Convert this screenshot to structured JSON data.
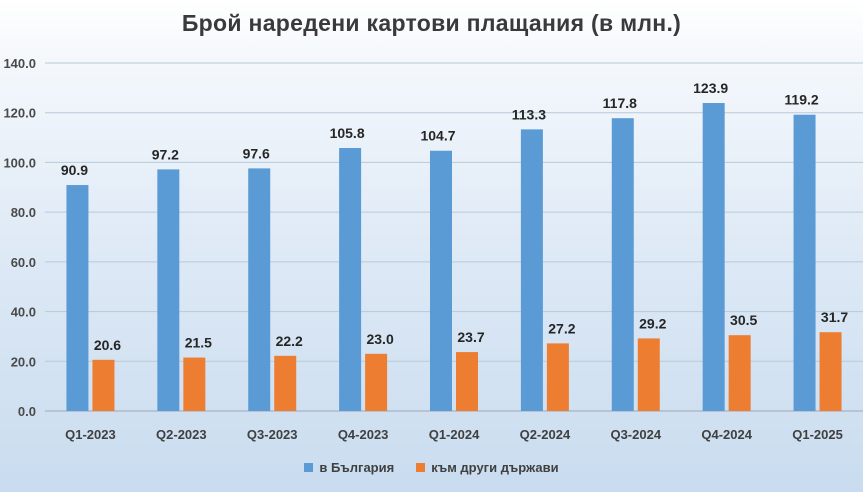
{
  "chart_data": {
    "type": "bar",
    "title": "Брой наредени картови плащания (в млн.)",
    "categories": [
      "Q1-2023",
      "Q2-2023",
      "Q3-2023",
      "Q4-2023",
      "Q1-2024",
      "Q2-2024",
      "Q3-2024",
      "Q4-2024",
      "Q1-2025"
    ],
    "series": [
      {
        "name": "в България",
        "color": "#5b9bd5",
        "values": [
          90.9,
          97.2,
          97.6,
          105.8,
          104.7,
          113.3,
          117.8,
          123.9,
          119.2
        ]
      },
      {
        "name": "към други държави",
        "color": "#ed7d31",
        "values": [
          20.6,
          21.5,
          22.2,
          23.0,
          23.7,
          27.2,
          29.2,
          30.5,
          31.7
        ]
      }
    ],
    "ylim": [
      0,
      140
    ],
    "yticks": [
      "0.0",
      "20.0",
      "40.0",
      "60.0",
      "80.0",
      "100.0",
      "120.0",
      "140.0"
    ],
    "grid": true,
    "legend": "bottom"
  }
}
